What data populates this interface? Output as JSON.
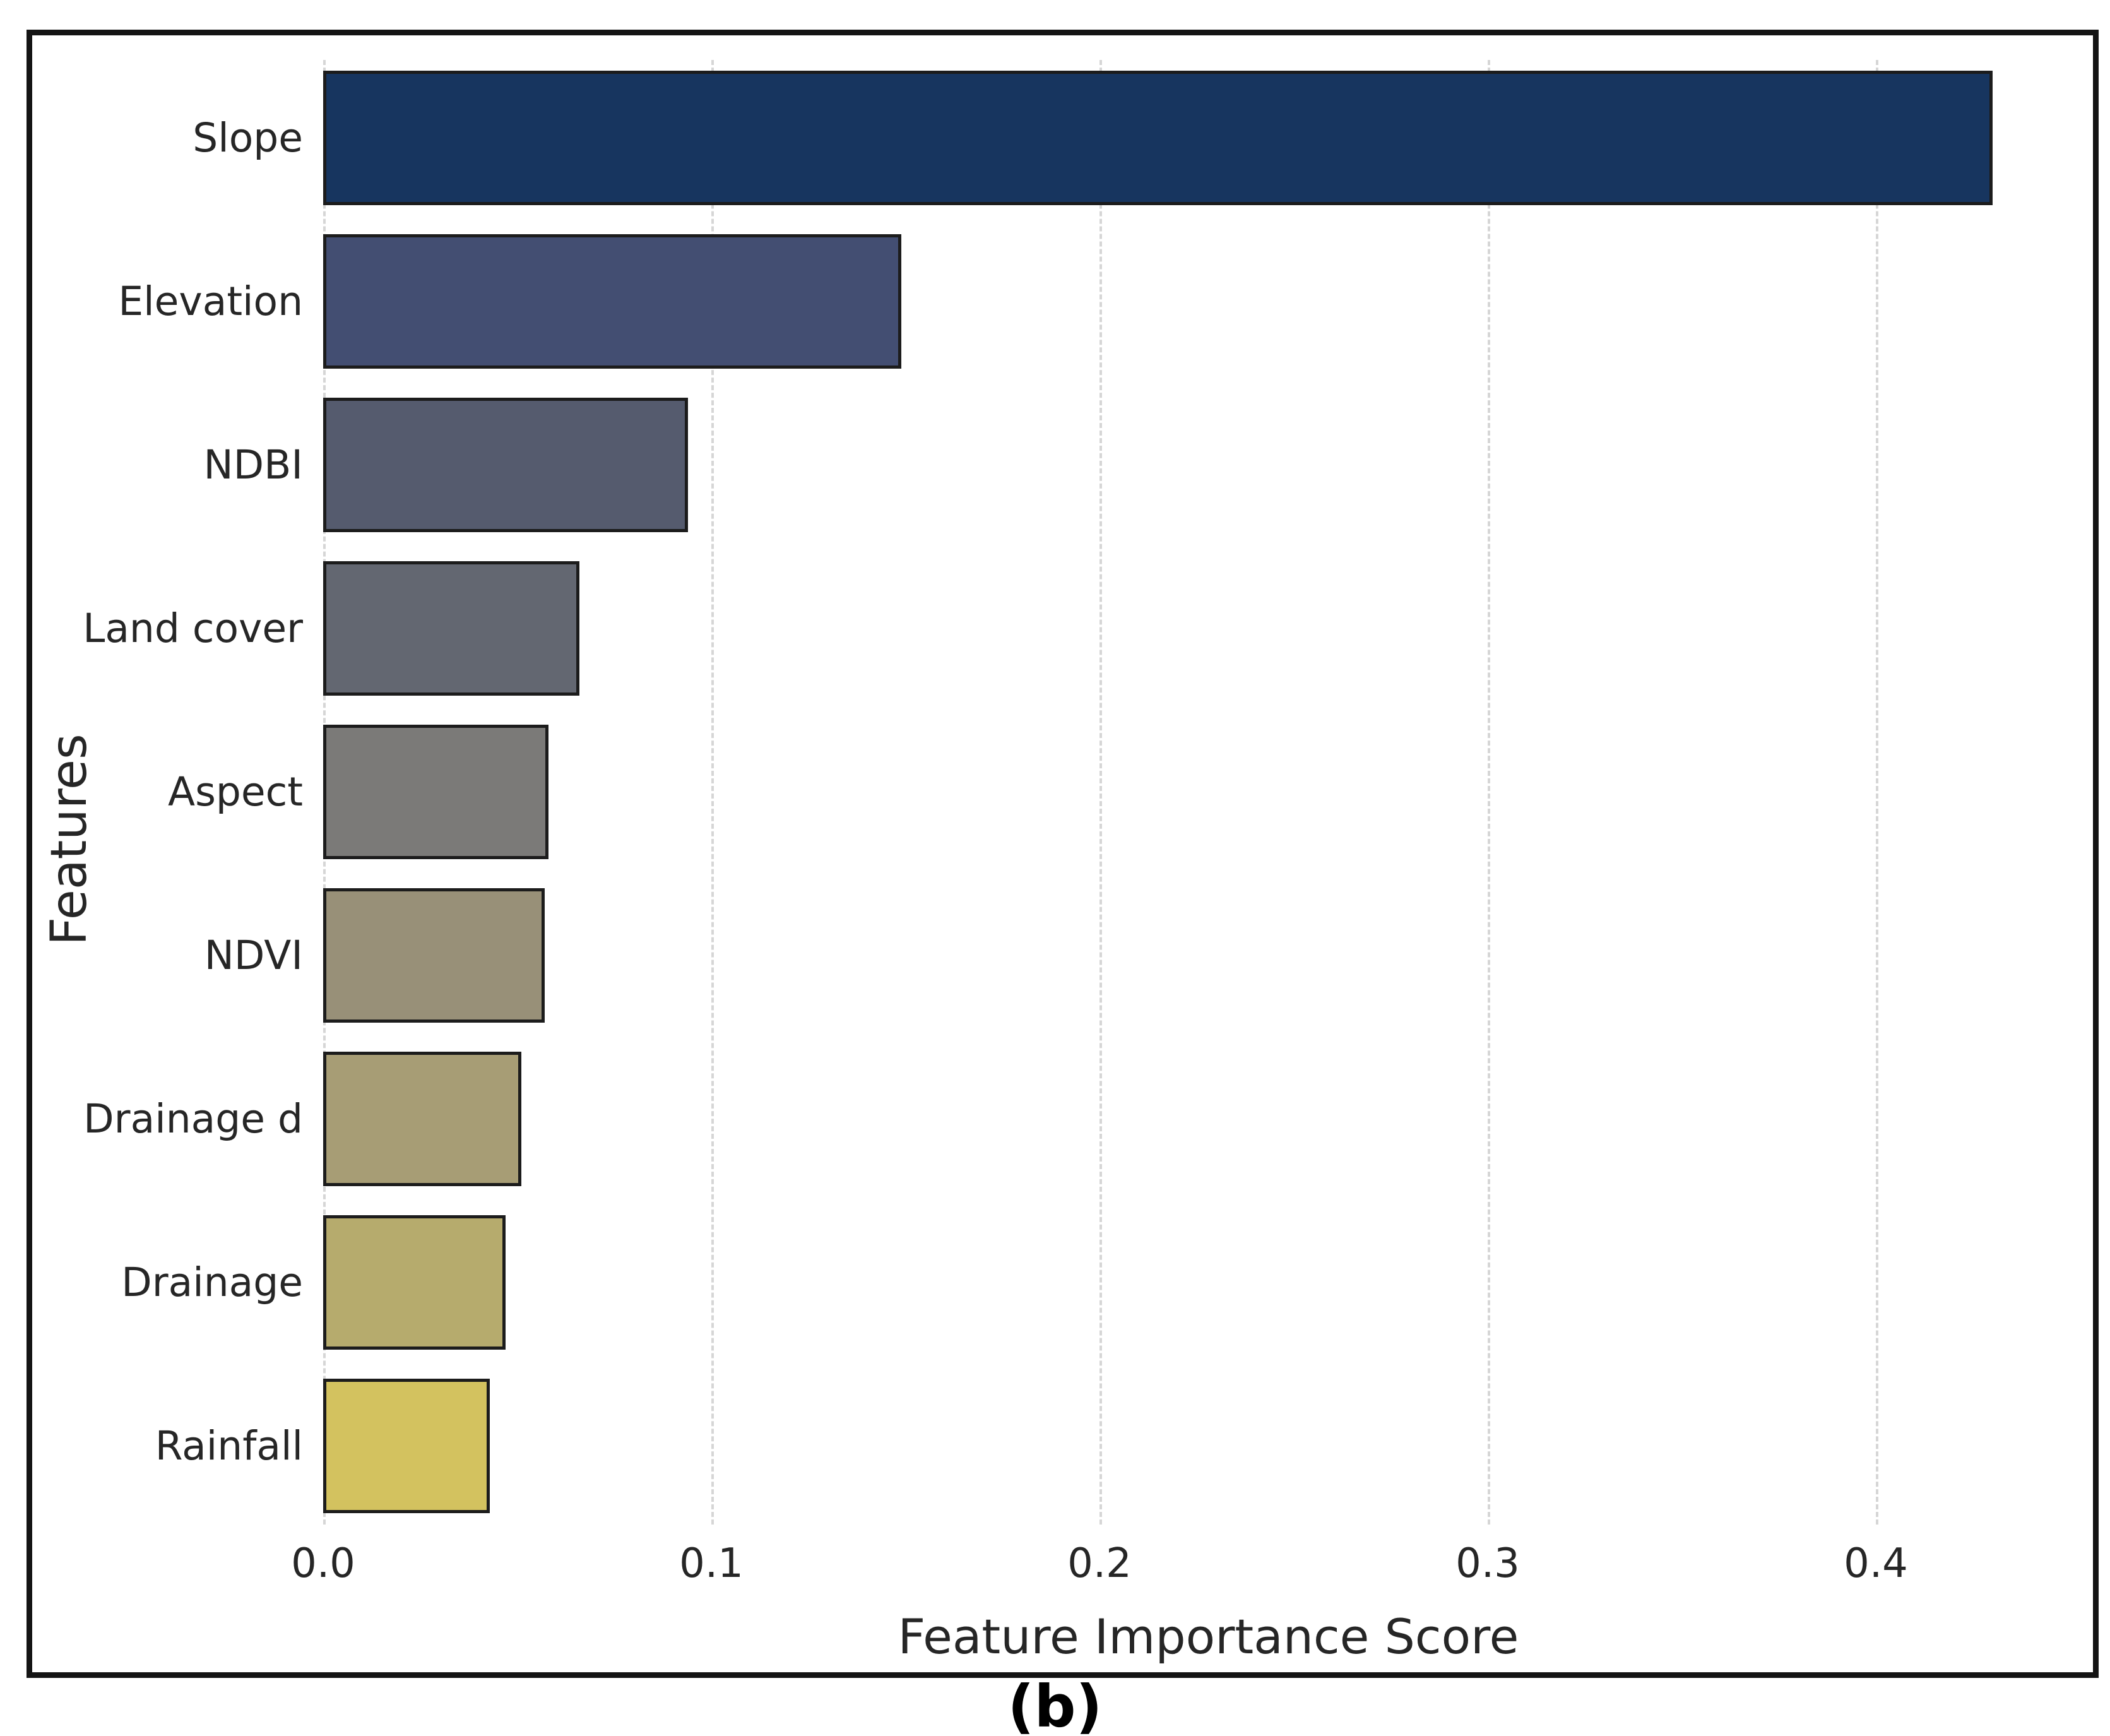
{
  "figure": {
    "caption": "(b)",
    "border_color": "#141414",
    "background": "#ffffff"
  },
  "chart_data": {
    "type": "bar",
    "orientation": "horizontal",
    "title": "",
    "xlabel": "Feature Importance Score",
    "ylabel": "Features",
    "categories": [
      "Slope",
      "Elevation",
      "NDBI",
      "Land cover",
      "Aspect",
      "NDVI",
      "Drainage d",
      "Drainage",
      "Rainfall"
    ],
    "values": [
      0.43,
      0.149,
      0.094,
      0.066,
      0.058,
      0.057,
      0.051,
      0.047,
      0.043
    ],
    "bar_colors": [
      "#17355f",
      "#434e72",
      "#555b6e",
      "#636771",
      "#7b7a78",
      "#989078",
      "#a79d75",
      "#b6ab6d",
      "#d3c25f"
    ],
    "bar_edge_color": "#1c1c1c",
    "xlim": [
      0.0,
      0.455
    ],
    "xtick_labels": [
      "0.0",
      "0.1",
      "0.2",
      "0.3",
      "0.4"
    ],
    "xtick_values": [
      0.0,
      0.1,
      0.2,
      0.3,
      0.4
    ],
    "grid": "vertical-dashed",
    "grid_color": "#d6d6d6",
    "legend": "none"
  }
}
